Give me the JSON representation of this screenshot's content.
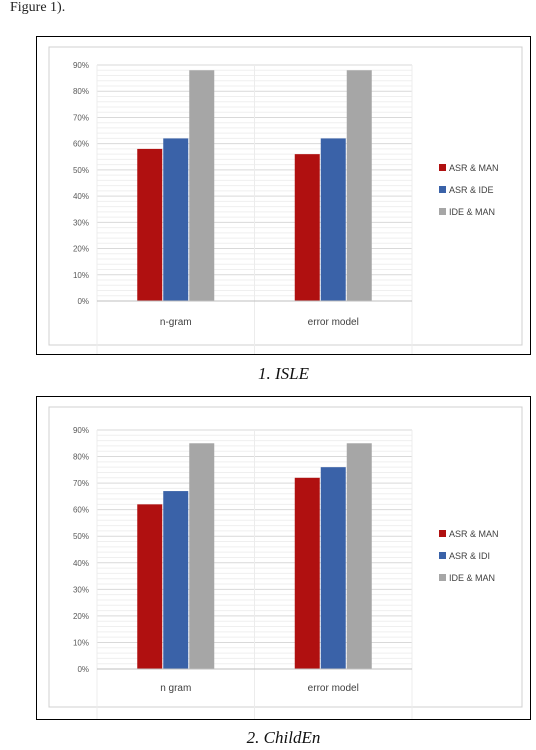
{
  "intro_text": "Figure 1).",
  "figures": [
    {
      "caption": "1. ISLE",
      "chart_data": {
        "type": "bar",
        "categories": [
          "n-gram",
          "error model"
        ],
        "series": [
          {
            "name": "ASR & MAN",
            "color": "#b01010",
            "values": [
              58,
              56
            ]
          },
          {
            "name": "ASR & IDE",
            "color": "#3a62a8",
            "values": [
              62,
              62
            ]
          },
          {
            "name": "IDE & MAN",
            "color": "#a6a6a6",
            "values": [
              88,
              88
            ]
          }
        ],
        "yticks": [
          "0%",
          "10%",
          "20%",
          "30%",
          "40%",
          "50%",
          "60%",
          "70%",
          "80%",
          "90%"
        ],
        "ylim": [
          0,
          90
        ],
        "grid": true,
        "legend_position": "right"
      }
    },
    {
      "caption": "2. ChildEn",
      "chart_data": {
        "type": "bar",
        "categories": [
          "n gram",
          "error model"
        ],
        "series": [
          {
            "name": "ASR & MAN",
            "color": "#b01010",
            "values": [
              62,
              72
            ]
          },
          {
            "name": "ASR & IDI",
            "color": "#3a62a8",
            "values": [
              67,
              76
            ]
          },
          {
            "name": "IDE & MAN",
            "color": "#a6a6a6",
            "values": [
              85,
              85
            ]
          }
        ],
        "yticks": [
          "0%",
          "10%",
          "20%",
          "30%",
          "40%",
          "50%",
          "60%",
          "70%",
          "80%",
          "90%"
        ],
        "ylim": [
          0,
          90
        ],
        "grid": true,
        "legend_position": "right"
      }
    }
  ]
}
